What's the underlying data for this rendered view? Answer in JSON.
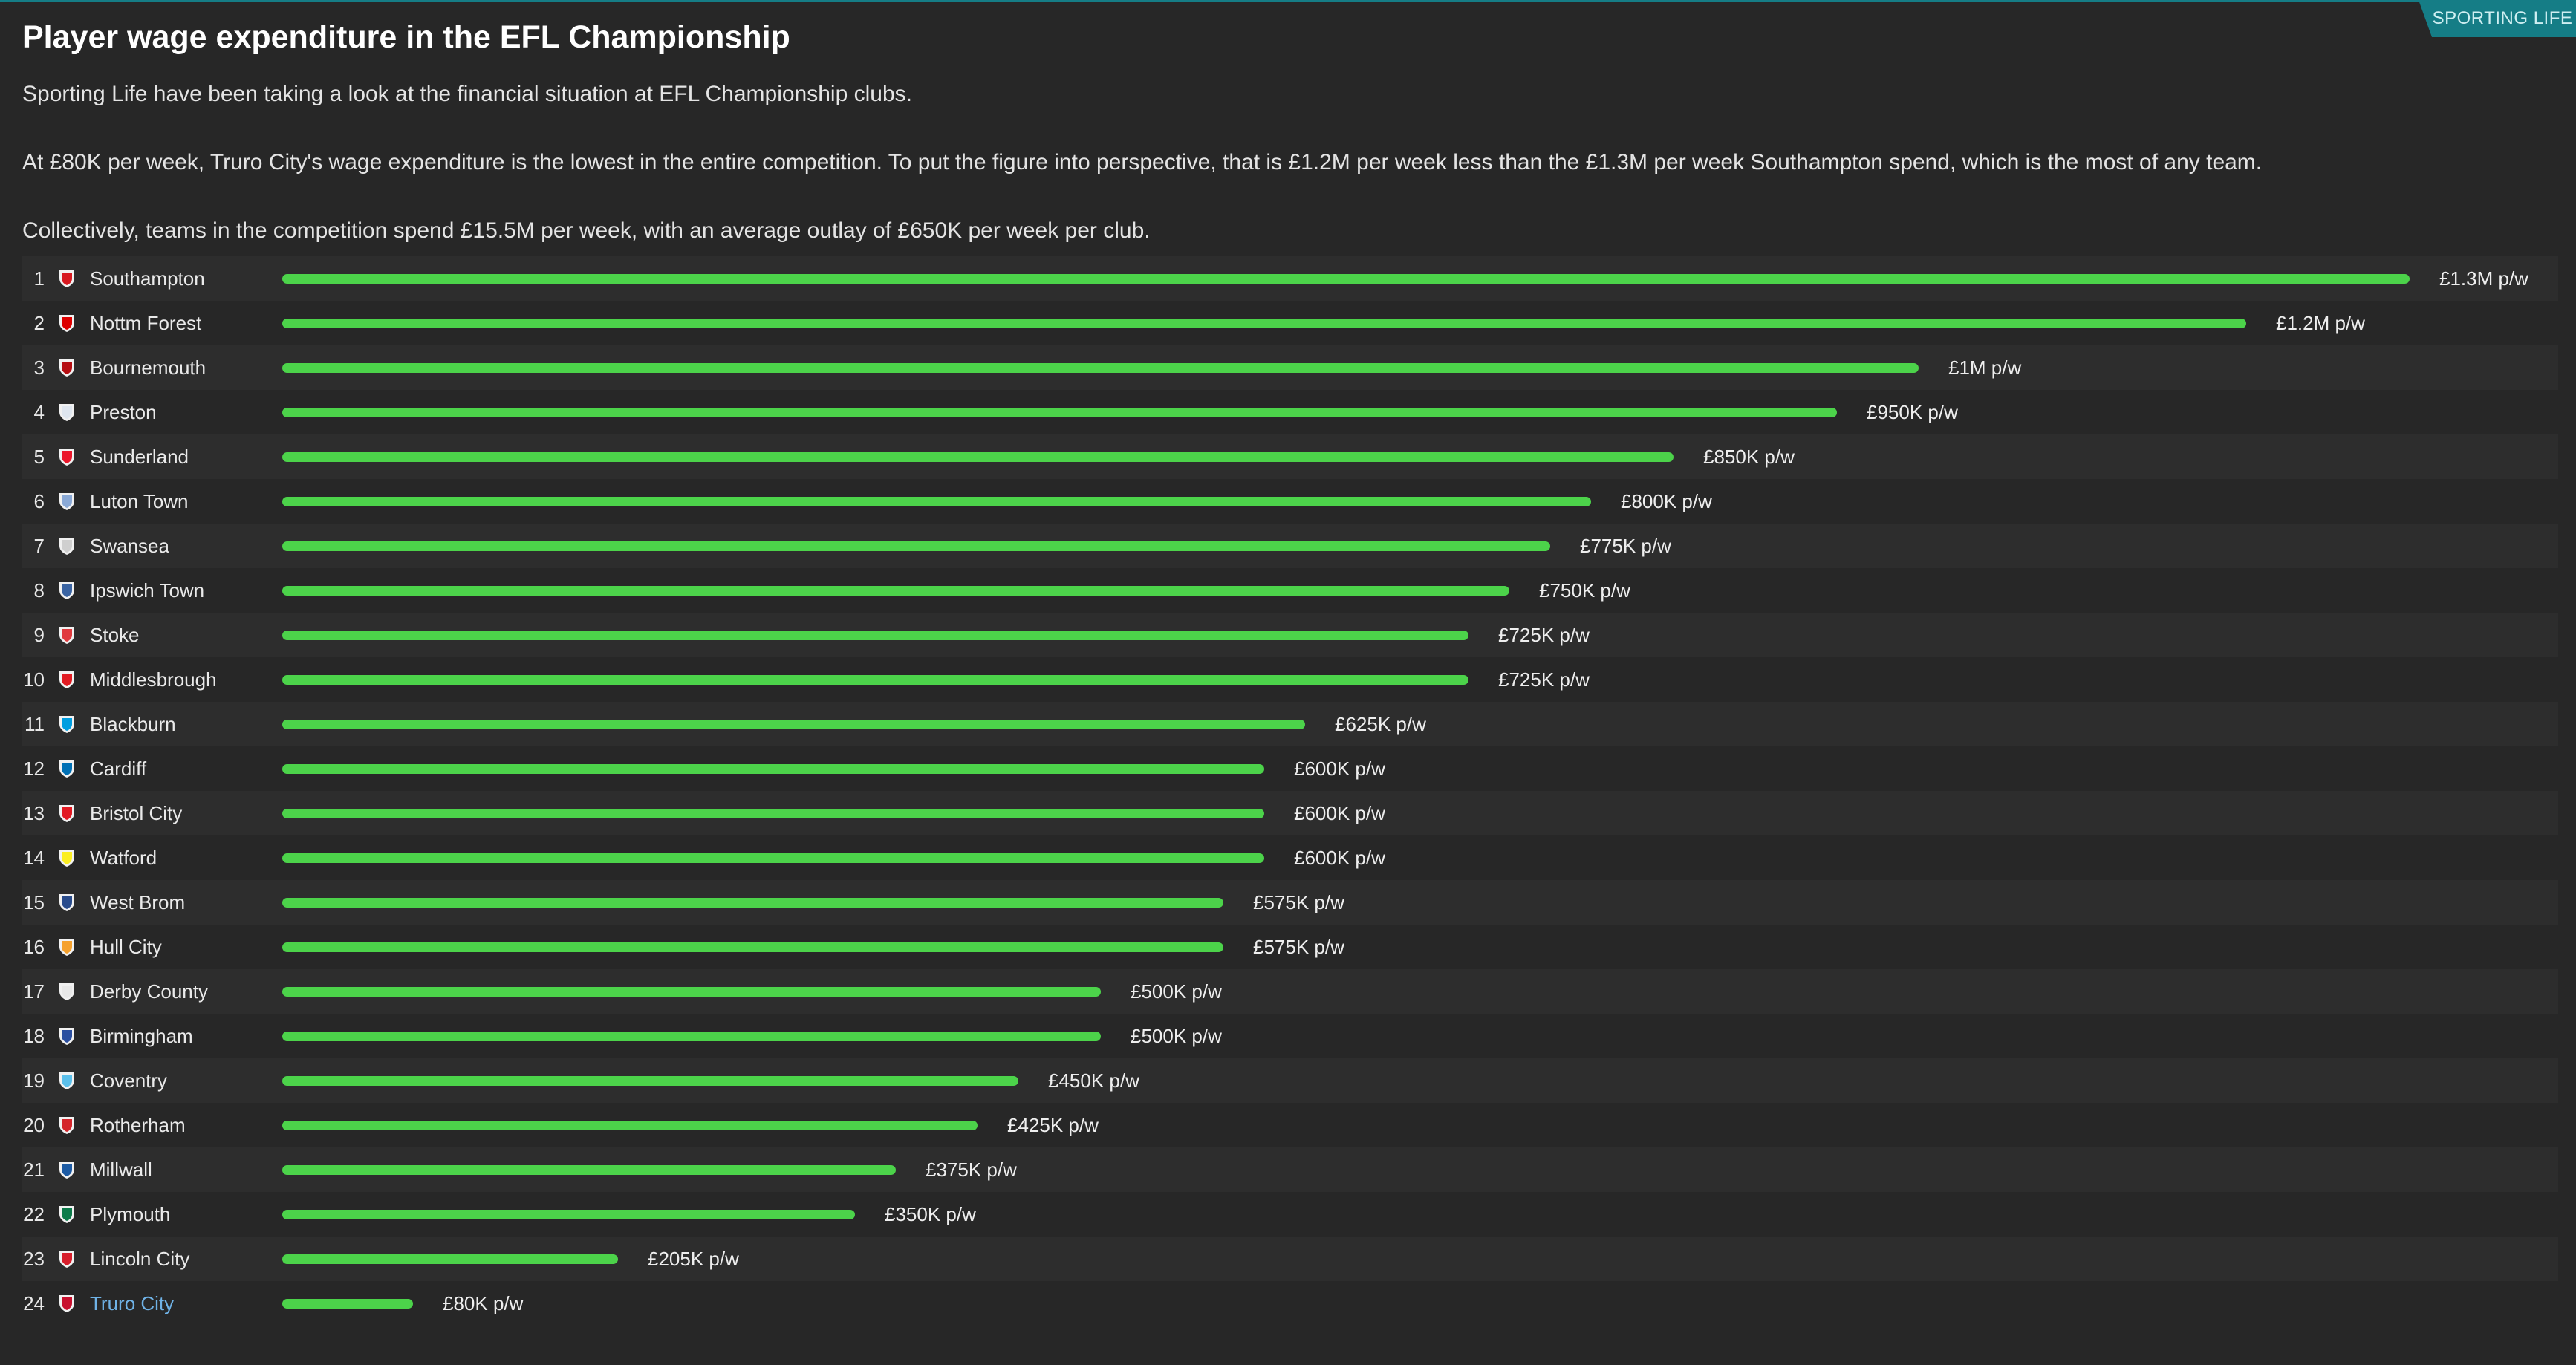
{
  "source_badge": "SPORTING LIFE",
  "title": "Player wage expenditure in the EFL Championship",
  "paragraphs": [
    "Sporting Life have been taking a look at the financial situation at EFL Championship clubs.",
    "At £80K per week, Truro City's wage expenditure is the lowest in the entire competition. To put the figure into perspective, that is £1.2M per week less than the £1.3M per week Southampton spend, which is the most of any team.",
    "Collectively, teams in the competition spend £15.5M per week, with an average outlay of £650K per week per club."
  ],
  "colors": {
    "bar": "#4cd34a",
    "accent": "#157d86",
    "highlight_team": "#6fb2e6",
    "background": "#272727"
  },
  "chart_data": {
    "type": "bar",
    "orientation": "horizontal",
    "unit": "£ per week",
    "xlim": [
      0,
      1300000
    ],
    "highlight": "Truro City",
    "rows": [
      {
        "rank": "1",
        "team": "Southampton",
        "value": 1300000,
        "label": "£1.3M p/w",
        "crest": "#d71920"
      },
      {
        "rank": "2",
        "team": "Nottm Forest",
        "value": 1200000,
        "label": "£1.2M p/w",
        "crest": "#dd0000"
      },
      {
        "rank": "3",
        "team": "Bournemouth",
        "value": 1000000,
        "label": "£1M p/w",
        "crest": "#b50e12"
      },
      {
        "rank": "4",
        "team": "Preston",
        "value": 950000,
        "label": "£950K p/w",
        "crest": "#dfe6ef"
      },
      {
        "rank": "5",
        "team": "Sunderland",
        "value": 850000,
        "label": "£850K p/w",
        "crest": "#eb172b"
      },
      {
        "rank": "6",
        "team": "Luton Town",
        "value": 800000,
        "label": "£800K p/w",
        "crest": "#8aa9d6"
      },
      {
        "rank": "7",
        "team": "Swansea",
        "value": 775000,
        "label": "£775K p/w",
        "crest": "#cfcfcf"
      },
      {
        "rank": "8",
        "team": "Ipswich Town",
        "value": 750000,
        "label": "£750K p/w",
        "crest": "#3a64a3"
      },
      {
        "rank": "9",
        "team": "Stoke",
        "value": 725000,
        "label": "£725K p/w",
        "crest": "#e03a3e"
      },
      {
        "rank": "10",
        "team": "Middlesbrough",
        "value": 725000,
        "label": "£725K p/w",
        "crest": "#e11b22"
      },
      {
        "rank": "11",
        "team": "Blackburn",
        "value": 625000,
        "label": "£625K p/w",
        "crest": "#009ee0"
      },
      {
        "rank": "12",
        "team": "Cardiff",
        "value": 600000,
        "label": "£600K p/w",
        "crest": "#0070b5"
      },
      {
        "rank": "13",
        "team": "Bristol City",
        "value": 600000,
        "label": "£600K p/w",
        "crest": "#e21a23"
      },
      {
        "rank": "14",
        "team": "Watford",
        "value": 600000,
        "label": "£600K p/w",
        "crest": "#fbee23"
      },
      {
        "rank": "15",
        "team": "West Brom",
        "value": 575000,
        "label": "£575K p/w",
        "crest": "#2a4c8c"
      },
      {
        "rank": "16",
        "team": "Hull City",
        "value": 575000,
        "label": "£575K p/w",
        "crest": "#f5a12d"
      },
      {
        "rank": "17",
        "team": "Derby County",
        "value": 500000,
        "label": "£500K p/w",
        "crest": "#e8e8e8"
      },
      {
        "rank": "18",
        "team": "Birmingham",
        "value": 500000,
        "label": "£500K p/w",
        "crest": "#2b4fa0"
      },
      {
        "rank": "19",
        "team": "Coventry",
        "value": 450000,
        "label": "£450K p/w",
        "crest": "#5bc0eb"
      },
      {
        "rank": "20",
        "team": "Rotherham",
        "value": 425000,
        "label": "£425K p/w",
        "crest": "#d4252b"
      },
      {
        "rank": "21",
        "team": "Millwall",
        "value": 375000,
        "label": "£375K p/w",
        "crest": "#1d5ba4"
      },
      {
        "rank": "22",
        "team": "Plymouth",
        "value": 350000,
        "label": "£350K p/w",
        "crest": "#0c7b4a"
      },
      {
        "rank": "23",
        "team": "Lincoln City",
        "value": 205000,
        "label": "£205K p/w",
        "crest": "#d71e2b"
      },
      {
        "rank": "24",
        "team": "Truro City",
        "value": 80000,
        "label": "£80K p/w",
        "crest": "#c8102e"
      }
    ]
  }
}
